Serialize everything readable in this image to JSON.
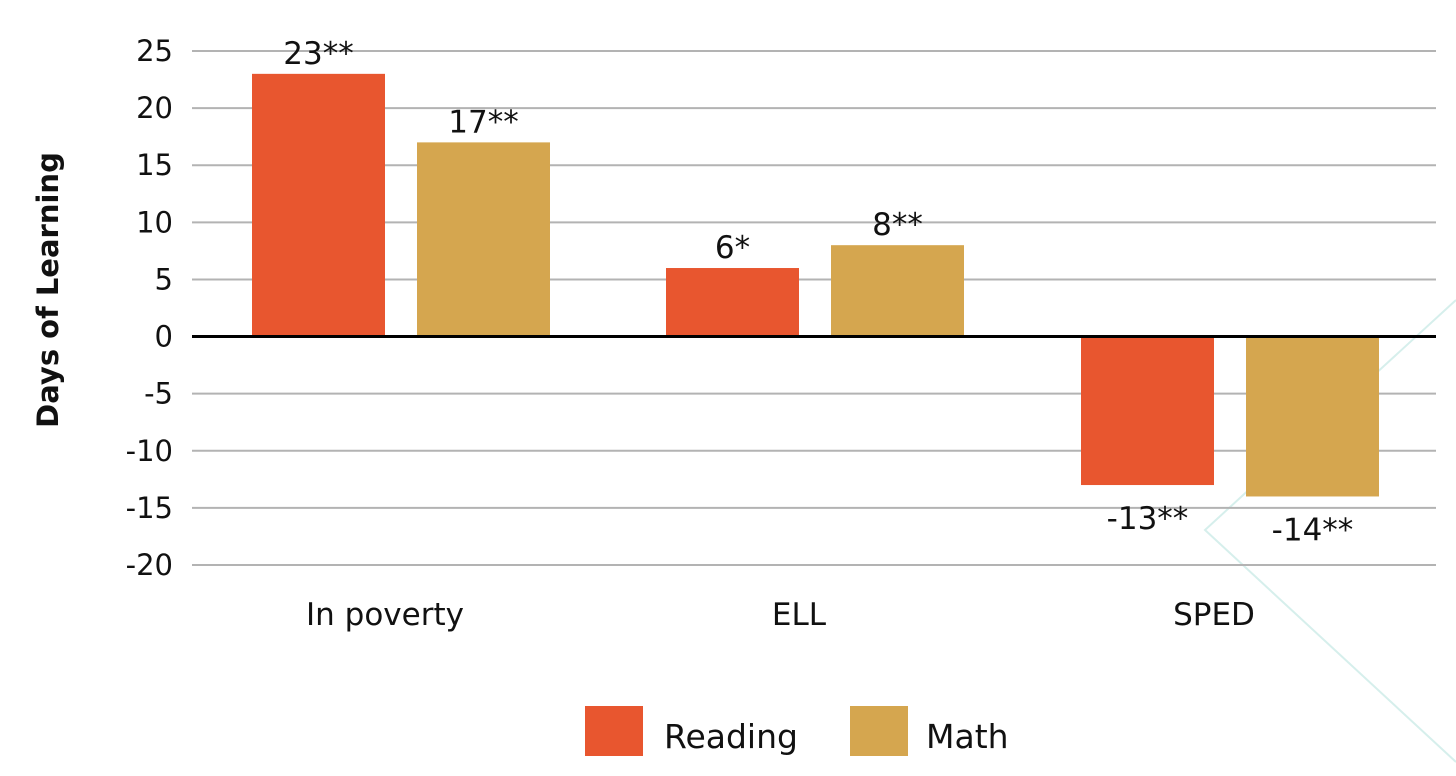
{
  "chart_data": {
    "type": "bar",
    "categories": [
      "In poverty",
      "ELL",
      "SPED"
    ],
    "series": [
      {
        "name": "Reading",
        "color": "#e8562f",
        "values": [
          23,
          6,
          -13
        ],
        "labels": [
          "23**",
          "6*",
          "-13**"
        ]
      },
      {
        "name": "Math",
        "color": "#d5a64f",
        "values": [
          17,
          8,
          -14
        ],
        "labels": [
          "17**",
          "8**",
          "-14**"
        ]
      }
    ],
    "ylabel": "Days of Learning",
    "xlabel": "",
    "ylim": [
      -20,
      25
    ],
    "yticks": [
      25,
      20,
      15,
      10,
      5,
      0,
      -5,
      -10,
      -15,
      -20
    ],
    "ytick_labels": [
      "25",
      "20",
      "15",
      "10",
      "5",
      "0",
      "-5",
      "-10",
      "-15",
      "-20"
    ],
    "grid": true,
    "legend_position": "bottom-center"
  }
}
